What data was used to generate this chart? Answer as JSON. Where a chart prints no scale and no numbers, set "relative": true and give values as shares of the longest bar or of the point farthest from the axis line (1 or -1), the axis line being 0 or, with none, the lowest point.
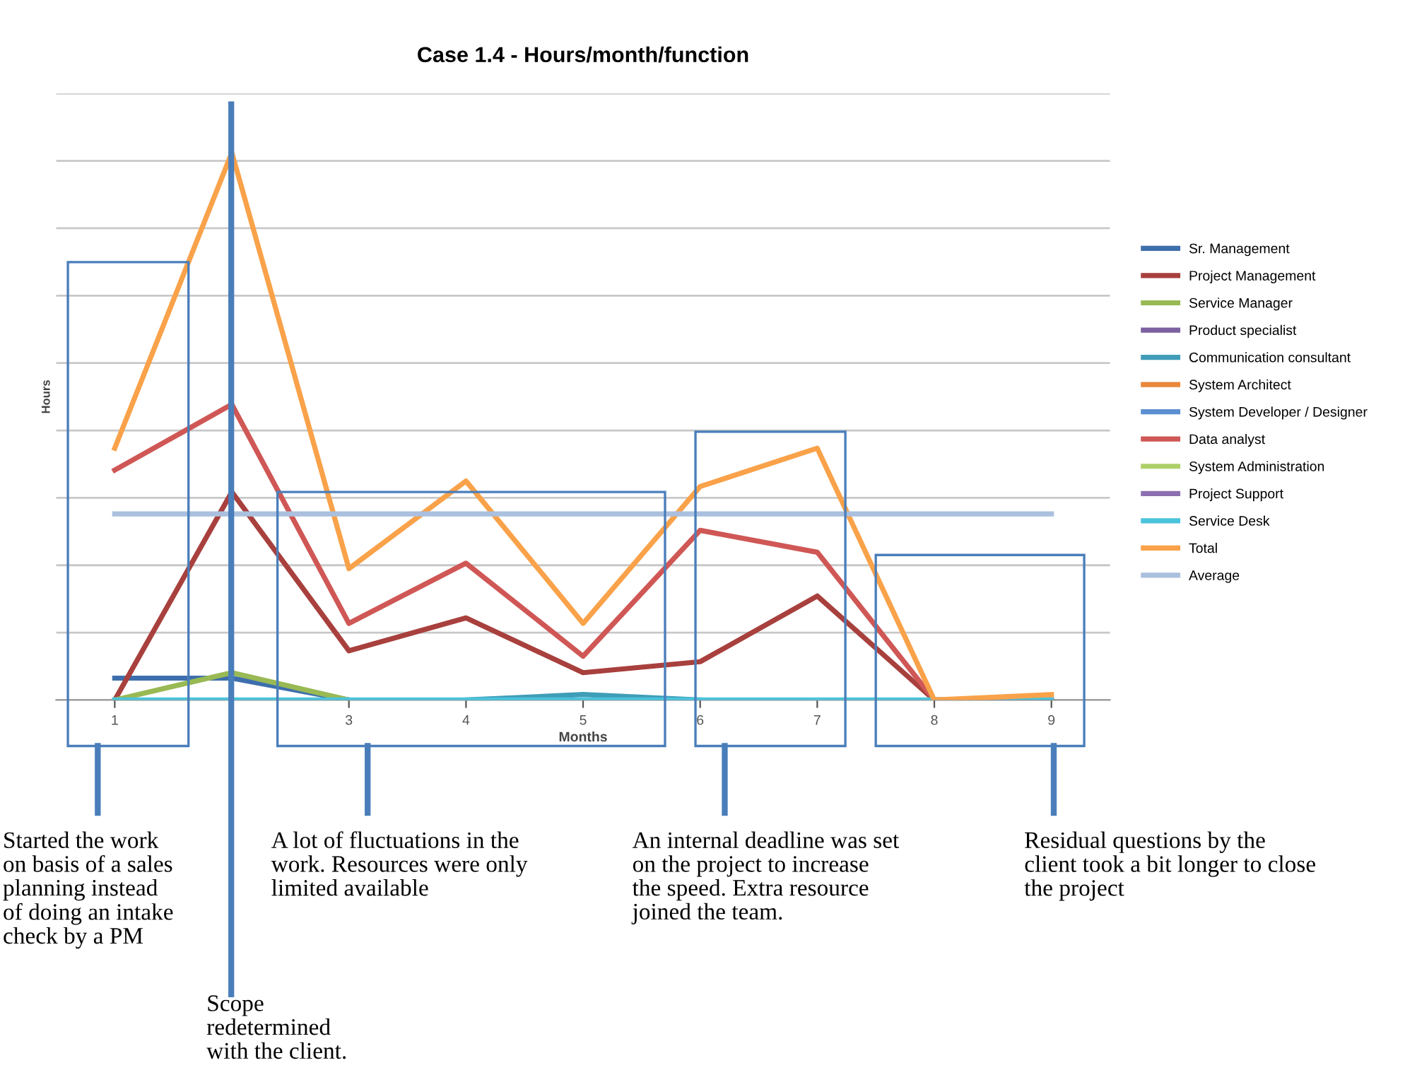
{
  "chart_data": {
    "type": "line",
    "title": "Case 1.4 - Hours/month/function",
    "xlabel": "Months",
    "ylabel": "Hours",
    "relative": true,
    "grid": "y",
    "legend": "right",
    "tick_labels": "x",
    "marker": "none",
    "line_style": "solid",
    "categories": [
      "1",
      null,
      "3",
      "4",
      "5",
      "6",
      "7",
      "8",
      "9"
    ],
    "series": [
      {
        "name": "Sr. Management",
        "color": "#3e6fad",
        "values": [
          0.04,
          0.04,
          0,
          null,
          null,
          null,
          null,
          null,
          null
        ]
      },
      {
        "name": "Project Management",
        "color": "#a8403d",
        "values": [
          0,
          0.38,
          0.09,
          0.15,
          0.05,
          0.07,
          0.19,
          0,
          0
        ]
      },
      {
        "name": "Service Manager",
        "color": "#98b954",
        "values": [
          0,
          0.05,
          0,
          null,
          null,
          null,
          null,
          null,
          null
        ]
      },
      {
        "name": "Product specialist",
        "color": "#7d60a0",
        "values": [
          null,
          null,
          null,
          null,
          null,
          null,
          null,
          null,
          null
        ]
      },
      {
        "name": "Communication consultant",
        "color": "#3f9db8",
        "values": [
          null,
          null,
          null,
          0,
          0.01,
          0,
          null,
          null,
          null
        ]
      },
      {
        "name": "System Architect",
        "color": "#e9873a",
        "values": [
          null,
          null,
          null,
          null,
          null,
          null,
          null,
          null,
          null
        ]
      },
      {
        "name": "System Developer / Designer",
        "color": "#5b8fd0",
        "values": [
          null,
          null,
          null,
          null,
          null,
          null,
          null,
          null,
          null
        ]
      },
      {
        "name": "Data analyst",
        "color": "#cf5755",
        "values": [
          0.42,
          0.54,
          0.14,
          0.25,
          0.08,
          0.31,
          0.27,
          0,
          0
        ]
      },
      {
        "name": "System Administration",
        "color": "#aed06a",
        "values": [
          null,
          null,
          null,
          null,
          null,
          null,
          null,
          null,
          null
        ]
      },
      {
        "name": "Project Support",
        "color": "#8c6fb0",
        "values": [
          null,
          null,
          null,
          null,
          null,
          null,
          null,
          null,
          null
        ]
      },
      {
        "name": "Service Desk",
        "color": "#4bc3dc",
        "values": [
          0,
          0,
          0,
          0,
          0,
          0,
          0,
          0,
          0
        ]
      },
      {
        "name": "Total",
        "color": "#f9a24a",
        "values": [
          0.46,
          1,
          0.24,
          0.4,
          0.14,
          0.39,
          0.46,
          0,
          0.01
        ]
      },
      {
        "name": "Average",
        "color": "#aac0de",
        "values": [
          0.34,
          0.34,
          0.34,
          0.34,
          0.34,
          0.34,
          0.34,
          0.34,
          0.34
        ]
      }
    ],
    "annotations": [
      "Started the work\non basis of a sales\nplanning instead\nof doing an intake\ncheck by a PM",
      "Scope\nredetermined\nwith the client.",
      "A lot of fluctuations in the\nwork. Resources were only\nlimited available",
      "An internal deadline was set\non the project to increase\nthe speed. Extra resource\njoined the team.",
      "Residual questions by the\nclient took a bit longer to close\nthe project"
    ]
  }
}
